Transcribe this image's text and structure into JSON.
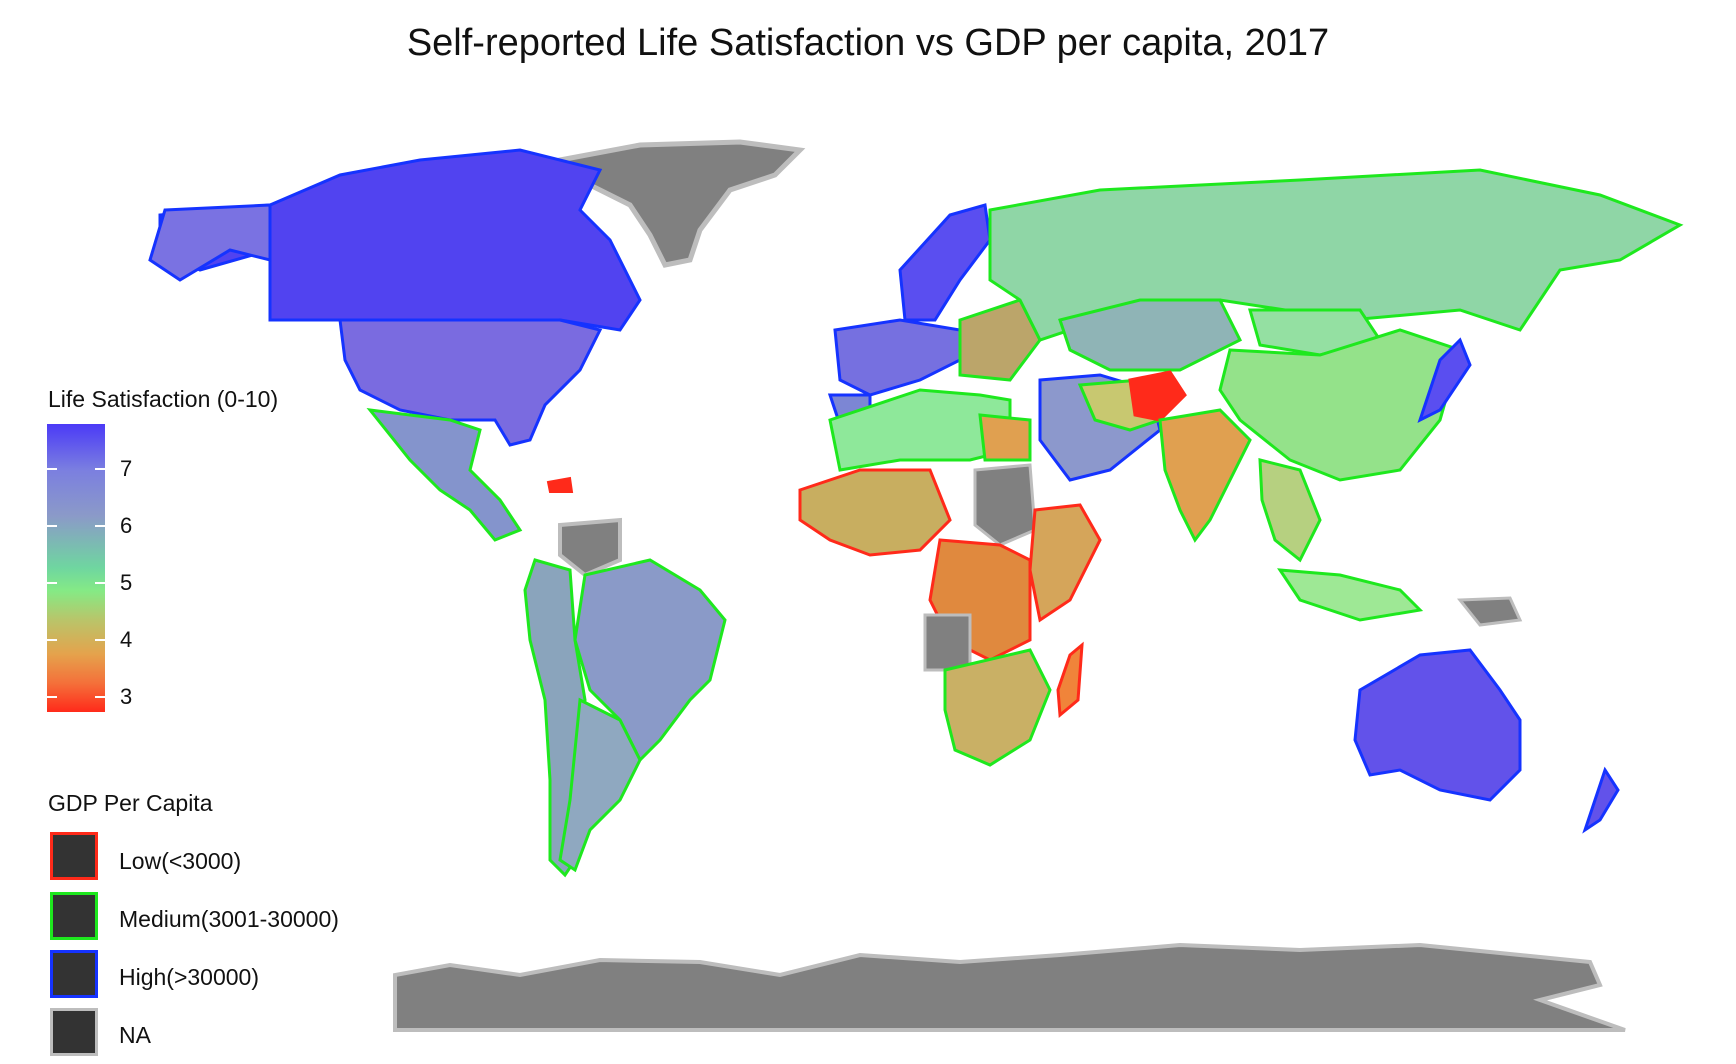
{
  "title": "Self-reported Life Satisfaction vs GDP per capita, 2017",
  "legend_fill": {
    "title": "Life Satisfaction (0-10)",
    "ticks": [
      "7",
      "6",
      "5",
      "4",
      "3"
    ],
    "color_high": "#4b3af7",
    "color_mid": "#85ea85",
    "color_low": "#ff2a1a"
  },
  "legend_border": {
    "title": "GDP Per Capita",
    "items": [
      {
        "label": "Low(<3000)",
        "color": "#ff2a1a"
      },
      {
        "label": "Medium(3001-30000)",
        "color": "#1ee81e"
      },
      {
        "label": "High(>30000)",
        "color": "#1533ff"
      },
      {
        "label": "NA",
        "color": "#bdbdbd"
      }
    ]
  },
  "chart_data": {
    "type": "choropleth",
    "fill_variable": "Life Satisfaction (0-10)",
    "border_variable": "GDP Per Capita",
    "na_fill": "#808080",
    "regions": [
      {
        "name": "Canada",
        "satisfaction": 7.3,
        "gdp": "High(>30000)"
      },
      {
        "name": "United States",
        "satisfaction": 6.9,
        "gdp": "High(>30000)"
      },
      {
        "name": "Mexico",
        "satisfaction": 6.4,
        "gdp": "Medium(3001-30000)"
      },
      {
        "name": "Brazil",
        "satisfaction": 6.3,
        "gdp": "Medium(3001-30000)"
      },
      {
        "name": "Australia",
        "satisfaction": 7.2,
        "gdp": "High(>30000)"
      },
      {
        "name": "Russia",
        "satisfaction": 5.8,
        "gdp": "Medium(3001-30000)"
      },
      {
        "name": "China",
        "satisfaction": 5.1,
        "gdp": "Medium(3001-30000)"
      },
      {
        "name": "India",
        "satisfaction": 4.0,
        "gdp": "Medium(3001-30000)"
      },
      {
        "name": "Afghanistan",
        "satisfaction": 2.7,
        "gdp": "Low(<3000)"
      },
      {
        "name": "Greenland",
        "satisfaction": null,
        "gdp": "NA"
      },
      {
        "name": "Antarctica",
        "satisfaction": null,
        "gdp": "NA"
      }
    ]
  }
}
